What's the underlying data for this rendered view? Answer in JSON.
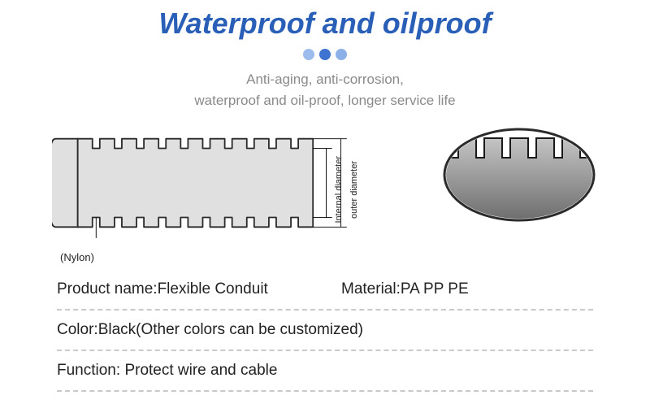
{
  "title": {
    "text": "Waterproof and oilproof",
    "color": "#2a5fb8"
  },
  "dots": {
    "colors": [
      "#9cbced",
      "#3e73d0",
      "#8bb1e8"
    ]
  },
  "subtitle": {
    "line1": "Anti-aging, anti-corrosion,",
    "line2": "waterproof and oil-proof, longer service life"
  },
  "diagram": {
    "material_label": "(Nylon)",
    "inner_label": "Internal diameter",
    "outer_label": "outer diameter",
    "conduit": {
      "fill": "#e0e0e0",
      "stroke": "#2b2b2b",
      "rib_count": 11,
      "outer_h": 120,
      "inner_h": 94,
      "rib_w": 20,
      "gap_w": 10,
      "left_cap_w": 30
    },
    "detail": {
      "ellipse_fill": "#ffffff",
      "ellipse_stroke": "#2b2b2b",
      "teeth_fill_top": "#c4c4c4",
      "teeth_fill_bot": "#6b6b6b",
      "teeth_count": 5
    }
  },
  "specs": {
    "row1": {
      "product_label": "Product name:",
      "product_val": "Flexible Conduit",
      "material_label": "Material:",
      "material_val": "PA PP PE"
    },
    "row2": {
      "color_label": "Color:",
      "color_val": "Black(Other colors can be customized)"
    },
    "row3": {
      "func_label": "Function: ",
      "func_val": "Protect wire and cable"
    }
  }
}
